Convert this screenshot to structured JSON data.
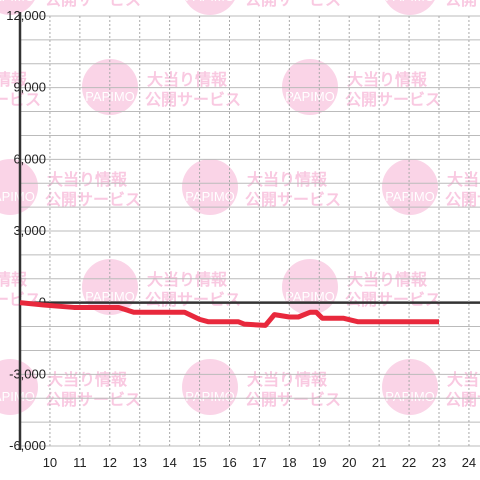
{
  "chart_data": {
    "type": "line",
    "watermark": {
      "logo": "PAPIMO",
      "line1": "大当り情報",
      "line2": "公開サービス"
    },
    "xlim": [
      9,
      24.37
    ],
    "xticks": [
      10,
      11,
      12,
      13,
      14,
      15,
      16,
      17,
      18,
      19,
      20,
      21,
      22,
      23,
      24
    ],
    "ylim": [
      -6000,
      12000
    ],
    "yticks": [
      {
        "value": 12000,
        "label": "12,000"
      },
      {
        "value": 9000,
        "label": "9,000"
      },
      {
        "value": 6000,
        "label": "6,000"
      },
      {
        "value": 3000,
        "label": "3,000"
      },
      0,
      {
        "value": -3000,
        "label": "-3,000"
      },
      {
        "value": -6000,
        "label": "-6,000"
      }
    ],
    "y_gridlines": [
      11000,
      10000,
      8000,
      7000,
      5000,
      4000,
      2000,
      1000,
      -1000,
      -2000,
      -4000,
      -5000
    ],
    "grid": true,
    "series": [
      {
        "color": "#e8283c",
        "x": [
          9,
          9.8,
          10.8,
          12.3,
          12.8,
          14.5,
          15,
          15.3,
          16.3,
          16.5,
          17.2,
          17.5,
          18,
          18.3,
          18.7,
          18.9,
          19.1,
          19.8,
          20.3,
          23
        ],
        "values": [
          0,
          -100,
          -200,
          -200,
          -400,
          -400,
          -700,
          -800,
          -800,
          -900,
          -950,
          -500,
          -600,
          -600,
          -400,
          -400,
          -650,
          -650,
          -800,
          -800
        ]
      }
    ]
  }
}
